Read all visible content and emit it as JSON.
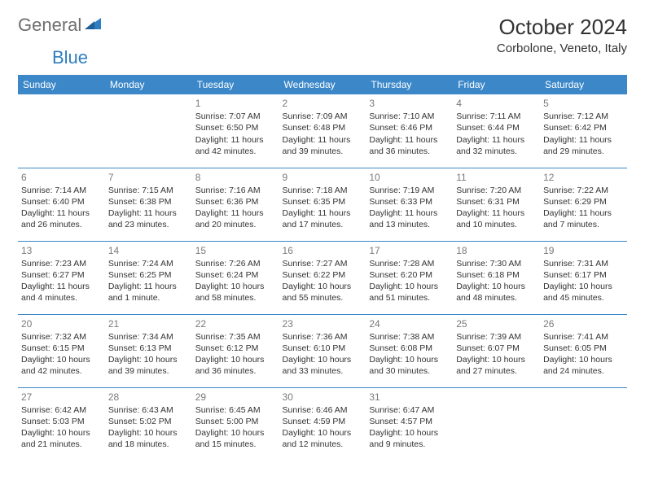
{
  "logo": {
    "general": "General",
    "blue": "Blue"
  },
  "title": "October 2024",
  "location": "Corbolone, Veneto, Italy",
  "colors": {
    "header_bg": "#3b87c8",
    "header_text": "#ffffff",
    "border": "#3b87c8",
    "text": "#333333",
    "muted": "#7a7a7a",
    "logo_gray": "#6e6e6e",
    "logo_blue": "#2f7ec1",
    "background": "#ffffff"
  },
  "weekdays": [
    "Sunday",
    "Monday",
    "Tuesday",
    "Wednesday",
    "Thursday",
    "Friday",
    "Saturday"
  ],
  "weeks": [
    [
      null,
      null,
      {
        "day": "1",
        "sunrise": "Sunrise: 7:07 AM",
        "sunset": "Sunset: 6:50 PM",
        "daylight": "Daylight: 11 hours and 42 minutes."
      },
      {
        "day": "2",
        "sunrise": "Sunrise: 7:09 AM",
        "sunset": "Sunset: 6:48 PM",
        "daylight": "Daylight: 11 hours and 39 minutes."
      },
      {
        "day": "3",
        "sunrise": "Sunrise: 7:10 AM",
        "sunset": "Sunset: 6:46 PM",
        "daylight": "Daylight: 11 hours and 36 minutes."
      },
      {
        "day": "4",
        "sunrise": "Sunrise: 7:11 AM",
        "sunset": "Sunset: 6:44 PM",
        "daylight": "Daylight: 11 hours and 32 minutes."
      },
      {
        "day": "5",
        "sunrise": "Sunrise: 7:12 AM",
        "sunset": "Sunset: 6:42 PM",
        "daylight": "Daylight: 11 hours and 29 minutes."
      }
    ],
    [
      {
        "day": "6",
        "sunrise": "Sunrise: 7:14 AM",
        "sunset": "Sunset: 6:40 PM",
        "daylight": "Daylight: 11 hours and 26 minutes."
      },
      {
        "day": "7",
        "sunrise": "Sunrise: 7:15 AM",
        "sunset": "Sunset: 6:38 PM",
        "daylight": "Daylight: 11 hours and 23 minutes."
      },
      {
        "day": "8",
        "sunrise": "Sunrise: 7:16 AM",
        "sunset": "Sunset: 6:36 PM",
        "daylight": "Daylight: 11 hours and 20 minutes."
      },
      {
        "day": "9",
        "sunrise": "Sunrise: 7:18 AM",
        "sunset": "Sunset: 6:35 PM",
        "daylight": "Daylight: 11 hours and 17 minutes."
      },
      {
        "day": "10",
        "sunrise": "Sunrise: 7:19 AM",
        "sunset": "Sunset: 6:33 PM",
        "daylight": "Daylight: 11 hours and 13 minutes."
      },
      {
        "day": "11",
        "sunrise": "Sunrise: 7:20 AM",
        "sunset": "Sunset: 6:31 PM",
        "daylight": "Daylight: 11 hours and 10 minutes."
      },
      {
        "day": "12",
        "sunrise": "Sunrise: 7:22 AM",
        "sunset": "Sunset: 6:29 PM",
        "daylight": "Daylight: 11 hours and 7 minutes."
      }
    ],
    [
      {
        "day": "13",
        "sunrise": "Sunrise: 7:23 AM",
        "sunset": "Sunset: 6:27 PM",
        "daylight": "Daylight: 11 hours and 4 minutes."
      },
      {
        "day": "14",
        "sunrise": "Sunrise: 7:24 AM",
        "sunset": "Sunset: 6:25 PM",
        "daylight": "Daylight: 11 hours and 1 minute."
      },
      {
        "day": "15",
        "sunrise": "Sunrise: 7:26 AM",
        "sunset": "Sunset: 6:24 PM",
        "daylight": "Daylight: 10 hours and 58 minutes."
      },
      {
        "day": "16",
        "sunrise": "Sunrise: 7:27 AM",
        "sunset": "Sunset: 6:22 PM",
        "daylight": "Daylight: 10 hours and 55 minutes."
      },
      {
        "day": "17",
        "sunrise": "Sunrise: 7:28 AM",
        "sunset": "Sunset: 6:20 PM",
        "daylight": "Daylight: 10 hours and 51 minutes."
      },
      {
        "day": "18",
        "sunrise": "Sunrise: 7:30 AM",
        "sunset": "Sunset: 6:18 PM",
        "daylight": "Daylight: 10 hours and 48 minutes."
      },
      {
        "day": "19",
        "sunrise": "Sunrise: 7:31 AM",
        "sunset": "Sunset: 6:17 PM",
        "daylight": "Daylight: 10 hours and 45 minutes."
      }
    ],
    [
      {
        "day": "20",
        "sunrise": "Sunrise: 7:32 AM",
        "sunset": "Sunset: 6:15 PM",
        "daylight": "Daylight: 10 hours and 42 minutes."
      },
      {
        "day": "21",
        "sunrise": "Sunrise: 7:34 AM",
        "sunset": "Sunset: 6:13 PM",
        "daylight": "Daylight: 10 hours and 39 minutes."
      },
      {
        "day": "22",
        "sunrise": "Sunrise: 7:35 AM",
        "sunset": "Sunset: 6:12 PM",
        "daylight": "Daylight: 10 hours and 36 minutes."
      },
      {
        "day": "23",
        "sunrise": "Sunrise: 7:36 AM",
        "sunset": "Sunset: 6:10 PM",
        "daylight": "Daylight: 10 hours and 33 minutes."
      },
      {
        "day": "24",
        "sunrise": "Sunrise: 7:38 AM",
        "sunset": "Sunset: 6:08 PM",
        "daylight": "Daylight: 10 hours and 30 minutes."
      },
      {
        "day": "25",
        "sunrise": "Sunrise: 7:39 AM",
        "sunset": "Sunset: 6:07 PM",
        "daylight": "Daylight: 10 hours and 27 minutes."
      },
      {
        "day": "26",
        "sunrise": "Sunrise: 7:41 AM",
        "sunset": "Sunset: 6:05 PM",
        "daylight": "Daylight: 10 hours and 24 minutes."
      }
    ],
    [
      {
        "day": "27",
        "sunrise": "Sunrise: 6:42 AM",
        "sunset": "Sunset: 5:03 PM",
        "daylight": "Daylight: 10 hours and 21 minutes."
      },
      {
        "day": "28",
        "sunrise": "Sunrise: 6:43 AM",
        "sunset": "Sunset: 5:02 PM",
        "daylight": "Daylight: 10 hours and 18 minutes."
      },
      {
        "day": "29",
        "sunrise": "Sunrise: 6:45 AM",
        "sunset": "Sunset: 5:00 PM",
        "daylight": "Daylight: 10 hours and 15 minutes."
      },
      {
        "day": "30",
        "sunrise": "Sunrise: 6:46 AM",
        "sunset": "Sunset: 4:59 PM",
        "daylight": "Daylight: 10 hours and 12 minutes."
      },
      {
        "day": "31",
        "sunrise": "Sunrise: 6:47 AM",
        "sunset": "Sunset: 4:57 PM",
        "daylight": "Daylight: 10 hours and 9 minutes."
      },
      null,
      null
    ]
  ]
}
